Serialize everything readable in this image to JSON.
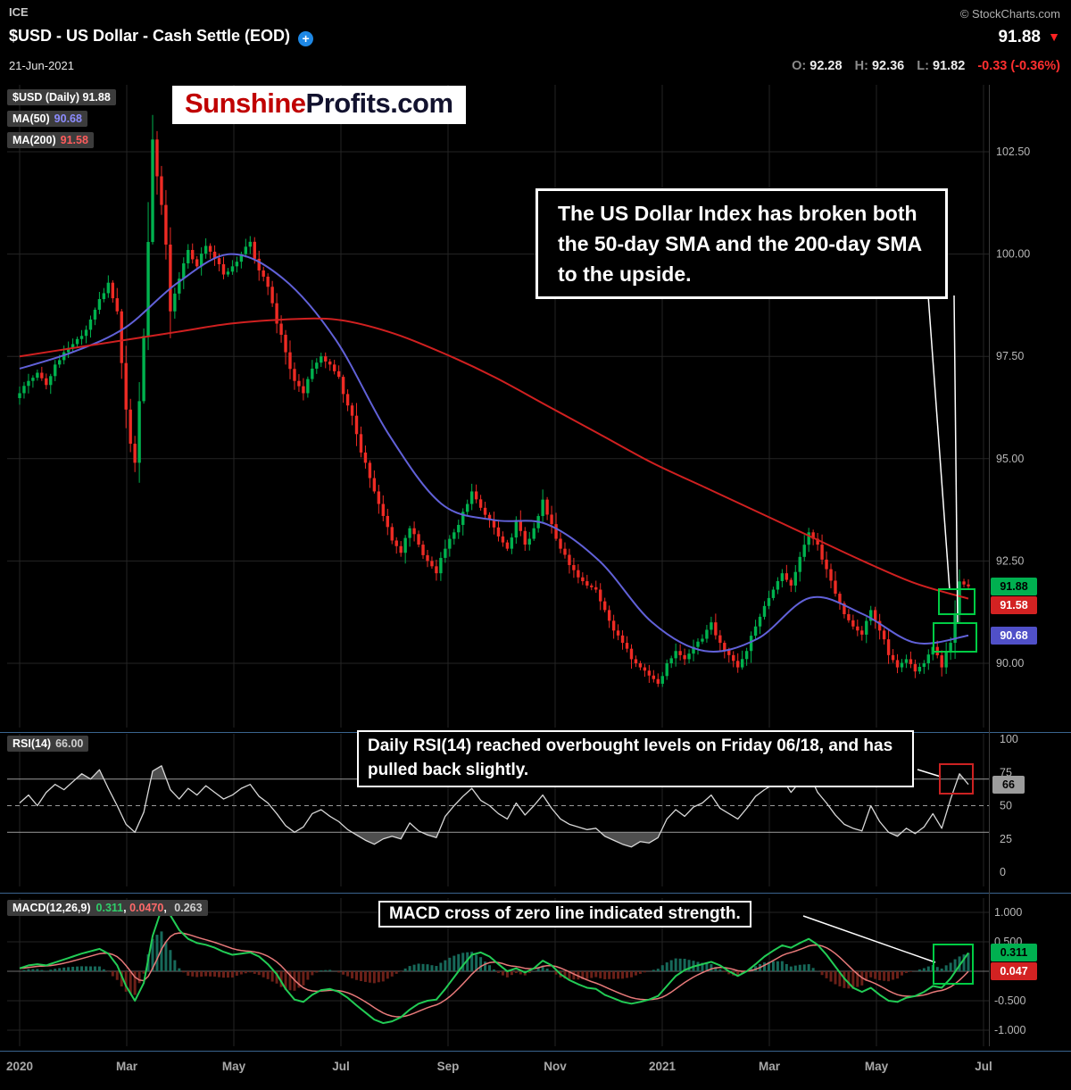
{
  "header": {
    "exchange": "ICE",
    "title": "$USD - US Dollar - Cash Settle (EOD)",
    "plus_icon": "+",
    "date": "21-Jun-2021",
    "copyright": "© StockCharts.com",
    "last_price": "91.88",
    "down_triangle": "▼",
    "o_label": "O:",
    "o_value": "92.28",
    "h_label": "H:",
    "h_value": "92.36",
    "l_label": "L:",
    "l_value": "91.82",
    "change": "-0.33 (-0.36%)"
  },
  "logo": {
    "part1": "Sunshine",
    "part2": "Profits.com"
  },
  "legend": {
    "symbol": "$USD (Daily) 91.88",
    "ma50_label": "MA(50)",
    "ma50_value": "90.68",
    "ma200_label": "MA(200)",
    "ma200_value": "91.58"
  },
  "rsi_legend": {
    "label": "RSI(14)",
    "value": "66.00"
  },
  "macd_legend": {
    "label": "MACD(12,26,9)",
    "v1": "0.311",
    "v2": "0.0470",
    "v3": "0.263",
    "sep": ", "
  },
  "annotations": {
    "main": "The US Dollar Index has broken both the 50-day SMA and the 200-day SMA to the upside.",
    "rsi": "Daily RSI(14) reached overbought levels on Friday 06/18, and has pulled back slightly.",
    "macd": "MACD cross of zero line indicated strength."
  },
  "badges": {
    "price": "91.88",
    "ma200": "91.58",
    "ma50": "90.68",
    "rsi": "66",
    "macd": "0.311",
    "signal": "0.047"
  },
  "axes": {
    "price_ticks": [
      102.5,
      100,
      97.5,
      95,
      92.5,
      90
    ],
    "price_tick_labels": [
      "102.50",
      "100.00",
      "97.50",
      "95.00",
      "92.50",
      "90.00"
    ],
    "rsi_ticks": [
      100,
      75,
      50,
      25,
      0
    ],
    "rsi_tick_labels": [
      "100",
      "75",
      "50",
      "25",
      "0"
    ],
    "macd_ticks": [
      1.0,
      0.5,
      0.0,
      -0.5,
      -1.0
    ],
    "macd_tick_labels": [
      "1.000",
      "0.500",
      "0.000",
      "-0.500",
      "-1.000"
    ],
    "x_labels": [
      "2020",
      "Mar",
      "May",
      "Jul",
      "Sep",
      "Nov",
      "2021",
      "Mar",
      "May",
      "Jul"
    ]
  },
  "chart_data": [
    {
      "type": "candlestick",
      "title": "$USD - US Dollar - Cash Settle (EOD), Daily",
      "x_start": "Jan 2020",
      "x_end": "21-Jun-2021",
      "ylim": [
        88.4,
        104.1
      ],
      "last_close": 91.88,
      "up_color": "#00b24e",
      "down_color": "#ee2b24",
      "closes": [
        96.6,
        96.9,
        97.1,
        96.8,
        97.3,
        97.6,
        97.8,
        98.0,
        98.4,
        98.9,
        99.3,
        98.6,
        96.2,
        94.9,
        98.0,
        102.8,
        101.2,
        98.6,
        99.4,
        100.1,
        99.7,
        100.2,
        99.9,
        99.5,
        99.7,
        100.0,
        100.3,
        99.6,
        99.2,
        98.3,
        97.6,
        96.9,
        96.6,
        97.2,
        97.5,
        97.3,
        97.0,
        96.3,
        95.6,
        94.9,
        94.2,
        93.6,
        93.0,
        92.7,
        93.3,
        92.9,
        92.5,
        92.2,
        92.8,
        93.2,
        93.7,
        94.2,
        93.8,
        93.5,
        93.1,
        92.8,
        93.5,
        92.9,
        93.3,
        94.0,
        93.4,
        92.8,
        92.4,
        92.1,
        91.9,
        91.8,
        91.3,
        90.8,
        90.5,
        90.1,
        89.9,
        89.7,
        89.5,
        90.0,
        90.3,
        90.1,
        90.4,
        90.6,
        91.0,
        90.5,
        90.2,
        89.9,
        90.3,
        90.9,
        91.4,
        91.8,
        92.2,
        91.9,
        92.6,
        93.2,
        92.9,
        92.3,
        91.7,
        91.2,
        90.9,
        90.7,
        91.3,
        90.8,
        90.2,
        89.9,
        90.1,
        89.8,
        90.0,
        90.4,
        89.9,
        90.5,
        92.0,
        91.88
      ],
      "series": [
        {
          "name": "MA(50)",
          "color": "#6161d8",
          "last": 90.68,
          "values": [
            97.2,
            97.6,
            98.2,
            99.3,
            100.0,
            99.4,
            97.9,
            95.6,
            93.9,
            93.5,
            93.4,
            92.5,
            91.0,
            90.3,
            90.6,
            91.6,
            91.2,
            90.5,
            90.68
          ]
        },
        {
          "name": "MA(200)",
          "color": "#d02020",
          "last": 91.58,
          "values": [
            97.5,
            97.7,
            97.9,
            98.1,
            98.3,
            98.4,
            98.4,
            98.1,
            97.6,
            97.0,
            96.3,
            95.6,
            94.9,
            94.3,
            93.7,
            93.1,
            92.5,
            91.95,
            91.58
          ]
        }
      ]
    },
    {
      "type": "line",
      "title": "RSI(14)",
      "ylim": [
        0,
        100
      ],
      "levels": {
        "overbought": 70,
        "midline": 50,
        "oversold": 30
      },
      "last": 66.0,
      "values": [
        52,
        58,
        50,
        60,
        66,
        62,
        68,
        74,
        70,
        77,
        63,
        50,
        36,
        30,
        45,
        76,
        80,
        62,
        55,
        63,
        58,
        65,
        60,
        55,
        58,
        63,
        66,
        57,
        52,
        44,
        35,
        30,
        34,
        44,
        47,
        42,
        38,
        32,
        28,
        24,
        21,
        25,
        27,
        25,
        37,
        31,
        28,
        26,
        42,
        50,
        57,
        63,
        54,
        50,
        44,
        40,
        52,
        43,
        50,
        58,
        48,
        40,
        36,
        34,
        32,
        33,
        27,
        24,
        21,
        19,
        23,
        22,
        26,
        40,
        47,
        42,
        49,
        52,
        58,
        48,
        44,
        40,
        48,
        57,
        62,
        66,
        70,
        60,
        68,
        74,
        60,
        52,
        43,
        36,
        33,
        31,
        50,
        38,
        30,
        27,
        33,
        29,
        34,
        44,
        33,
        55,
        74,
        66
      ]
    },
    {
      "type": "macd",
      "title": "MACD(12,26,9)",
      "ylim": [
        -1.1,
        1.1
      ],
      "last": {
        "macd": 0.311,
        "signal": 0.047,
        "hist": 0.263
      },
      "macd": [
        0.05,
        0.1,
        0.12,
        0.1,
        0.15,
        0.2,
        0.25,
        0.3,
        0.34,
        0.38,
        0.3,
        0.1,
        -0.25,
        -0.5,
        -0.2,
        0.6,
        1.05,
        0.95,
        0.7,
        0.55,
        0.48,
        0.45,
        0.4,
        0.33,
        0.28,
        0.3,
        0.32,
        0.25,
        0.12,
        -0.05,
        -0.3,
        -0.48,
        -0.52,
        -0.4,
        -0.32,
        -0.3,
        -0.35,
        -0.45,
        -0.58,
        -0.7,
        -0.82,
        -0.88,
        -0.85,
        -0.78,
        -0.65,
        -0.55,
        -0.5,
        -0.48,
        -0.3,
        -0.1,
        0.1,
        0.28,
        0.32,
        0.25,
        0.12,
        0.0,
        0.05,
        -0.02,
        0.05,
        0.18,
        0.1,
        -0.05,
        -0.15,
        -0.22,
        -0.28,
        -0.3,
        -0.4,
        -0.46,
        -0.52,
        -0.55,
        -0.52,
        -0.48,
        -0.42,
        -0.25,
        -0.08,
        0.02,
        0.08,
        0.12,
        0.16,
        0.1,
        0.0,
        -0.08,
        0.0,
        0.12,
        0.25,
        0.35,
        0.44,
        0.4,
        0.48,
        0.55,
        0.45,
        0.28,
        0.08,
        -0.12,
        -0.28,
        -0.35,
        -0.28,
        -0.4,
        -0.5,
        -0.52,
        -0.45,
        -0.42,
        -0.35,
        -0.25,
        -0.28,
        -0.12,
        0.1,
        0.311
      ]
    }
  ]
}
